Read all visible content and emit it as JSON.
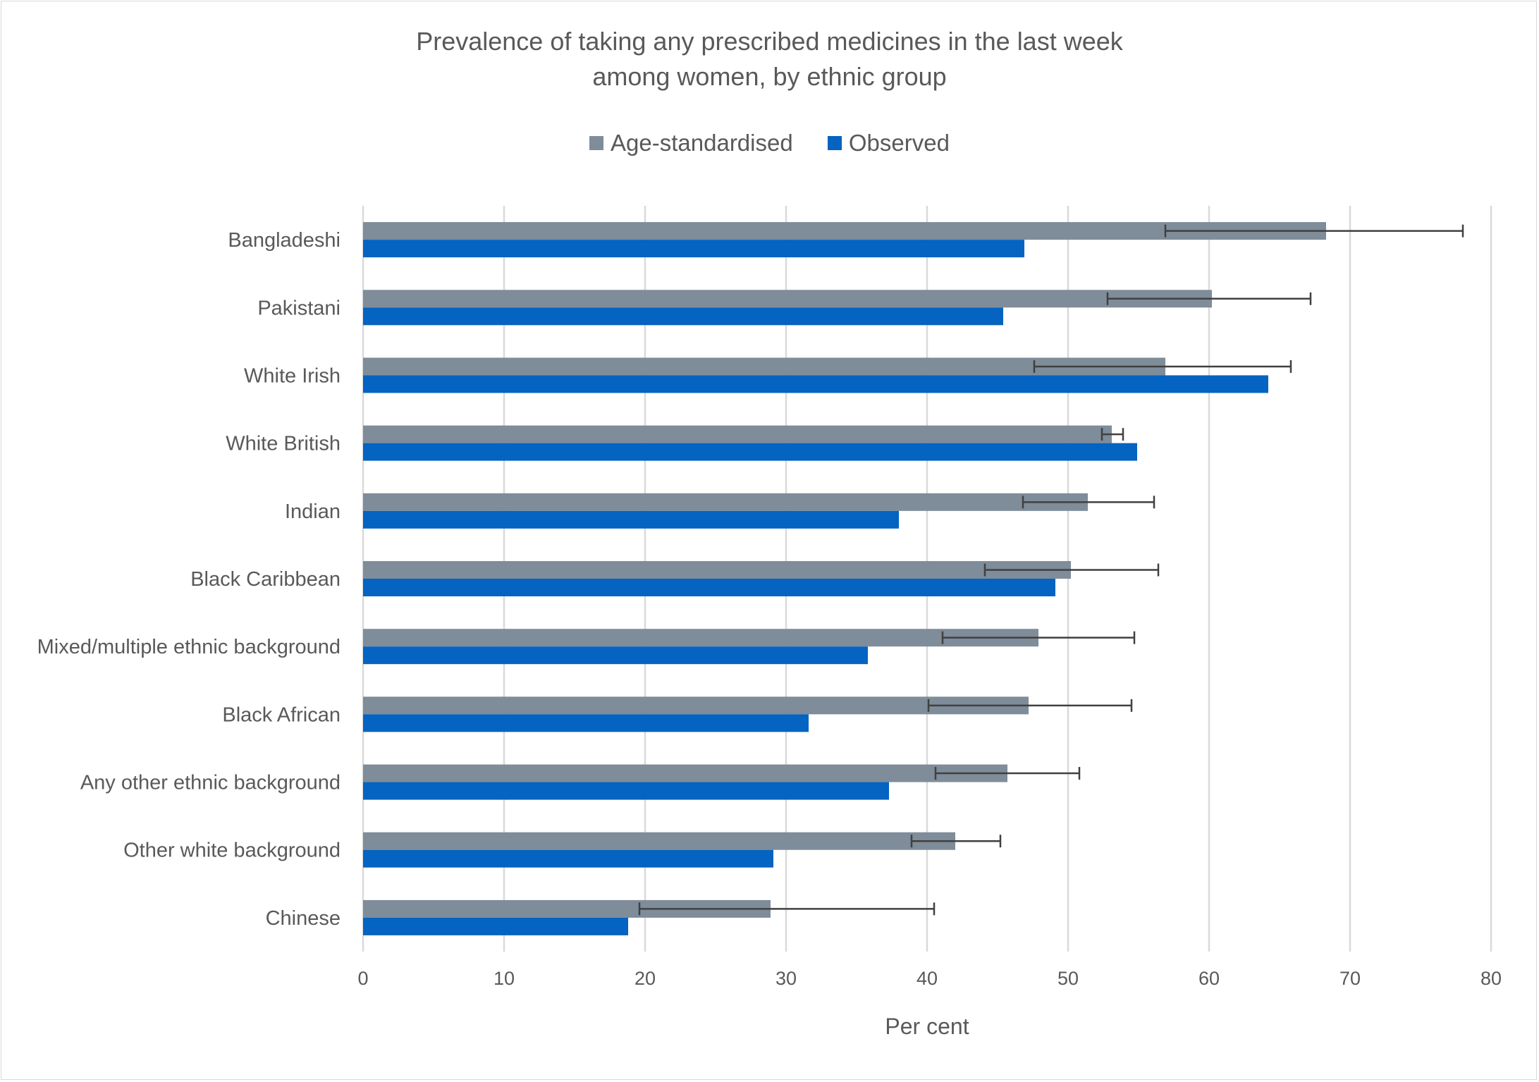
{
  "chart_data": {
    "type": "bar",
    "orientation": "horizontal",
    "title_line1": "Prevalence of taking any prescribed medicines in the last week",
    "title_line2": "among women, by ethnic group",
    "xlabel": "Per cent",
    "ylabel": "",
    "xlim": [
      0,
      80
    ],
    "xticks": [
      "0",
      "10",
      "20",
      "30",
      "40",
      "50",
      "60",
      "70",
      "80"
    ],
    "grid": true,
    "legend_position": "top",
    "categories": [
      "Bangladeshi",
      "Pakistani",
      "White Irish",
      "White British",
      "Indian",
      "Black Caribbean",
      "Mixed/multiple ethnic background",
      "Black African",
      "Any other ethnic background",
      "Other white background",
      "Chinese"
    ],
    "series": [
      {
        "name": "Age-standardised",
        "color": "#7f8c99",
        "values": [
          68.3,
          60.2,
          56.9,
          53.1,
          51.4,
          50.2,
          47.9,
          47.2,
          45.7,
          42.0,
          28.9
        ],
        "error_low": [
          56.9,
          52.8,
          47.6,
          52.4,
          46.8,
          44.1,
          41.1,
          40.1,
          40.6,
          38.9,
          19.6
        ],
        "error_high": [
          78.0,
          67.2,
          65.8,
          53.9,
          56.1,
          56.4,
          54.7,
          54.5,
          50.8,
          45.2,
          40.5
        ]
      },
      {
        "name": "Observed",
        "color": "#0563c1",
        "values": [
          46.9,
          45.4,
          64.2,
          54.9,
          38.0,
          49.1,
          35.8,
          31.6,
          37.3,
          29.1,
          18.8
        ]
      }
    ]
  }
}
